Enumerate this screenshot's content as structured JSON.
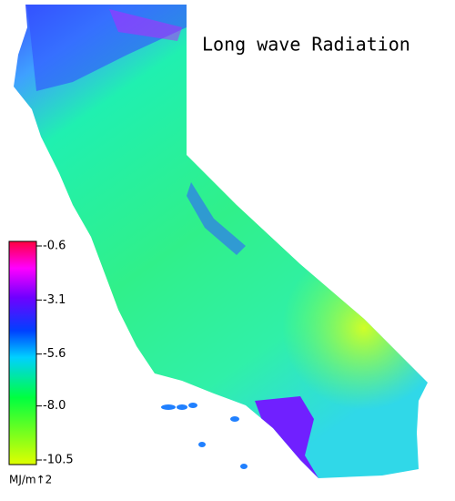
{
  "title": "Long wave Radiation",
  "legend": {
    "unit": "MJ/m↑2",
    "ticks": [
      {
        "value": -0.6,
        "label": "-0.6"
      },
      {
        "value": -3.1,
        "label": "-3.1"
      },
      {
        "value": -5.6,
        "label": "-5.6"
      },
      {
        "value": -8.0,
        "label": "-8.0"
      },
      {
        "value": -10.5,
        "label": "-10.5"
      }
    ]
  }
}
